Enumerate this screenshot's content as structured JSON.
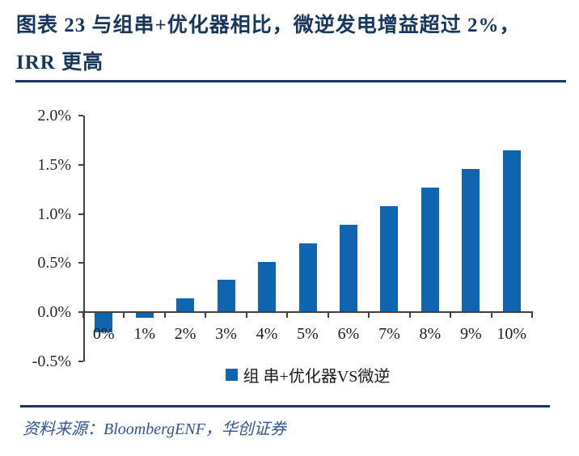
{
  "header": {
    "title_line1": "图表 23  与组串+优化器相比，微逆发电增益超过 2%，",
    "title_line2": "IRR 更高"
  },
  "chart_data": {
    "type": "bar",
    "title": "",
    "xlabel": "",
    "ylabel": "",
    "categories": [
      "0%",
      "1%",
      "2%",
      "3%",
      "4%",
      "5%",
      "6%",
      "7%",
      "8%",
      "9%",
      "10%"
    ],
    "values": [
      -0.2,
      -0.06,
      0.14,
      0.33,
      0.51,
      0.7,
      0.89,
      1.08,
      1.27,
      1.46,
      1.65
    ],
    "value_unit": "%",
    "ylim": [
      -0.5,
      2.0
    ],
    "y_tick_values": [
      2.0,
      1.5,
      1.0,
      0.5,
      0.0,
      -0.5
    ],
    "y_tick_labels": [
      "2.0%",
      "1.5%",
      "1.0%",
      "0.5%",
      "0.0%",
      "-0.5%"
    ],
    "grid": false,
    "legend": [
      "组 串+优化器VS微逆"
    ],
    "legend_position": "bottom",
    "bar_color": "#1065B0"
  },
  "footer": {
    "source_text": "资料来源：BloombergENF，华创证券"
  },
  "colors": {
    "title": "#17365D",
    "rule": "#17365D",
    "axis": "#404040",
    "tick_text": "#262626",
    "bar": "#1065B0",
    "source_text": "#2F5496"
  }
}
